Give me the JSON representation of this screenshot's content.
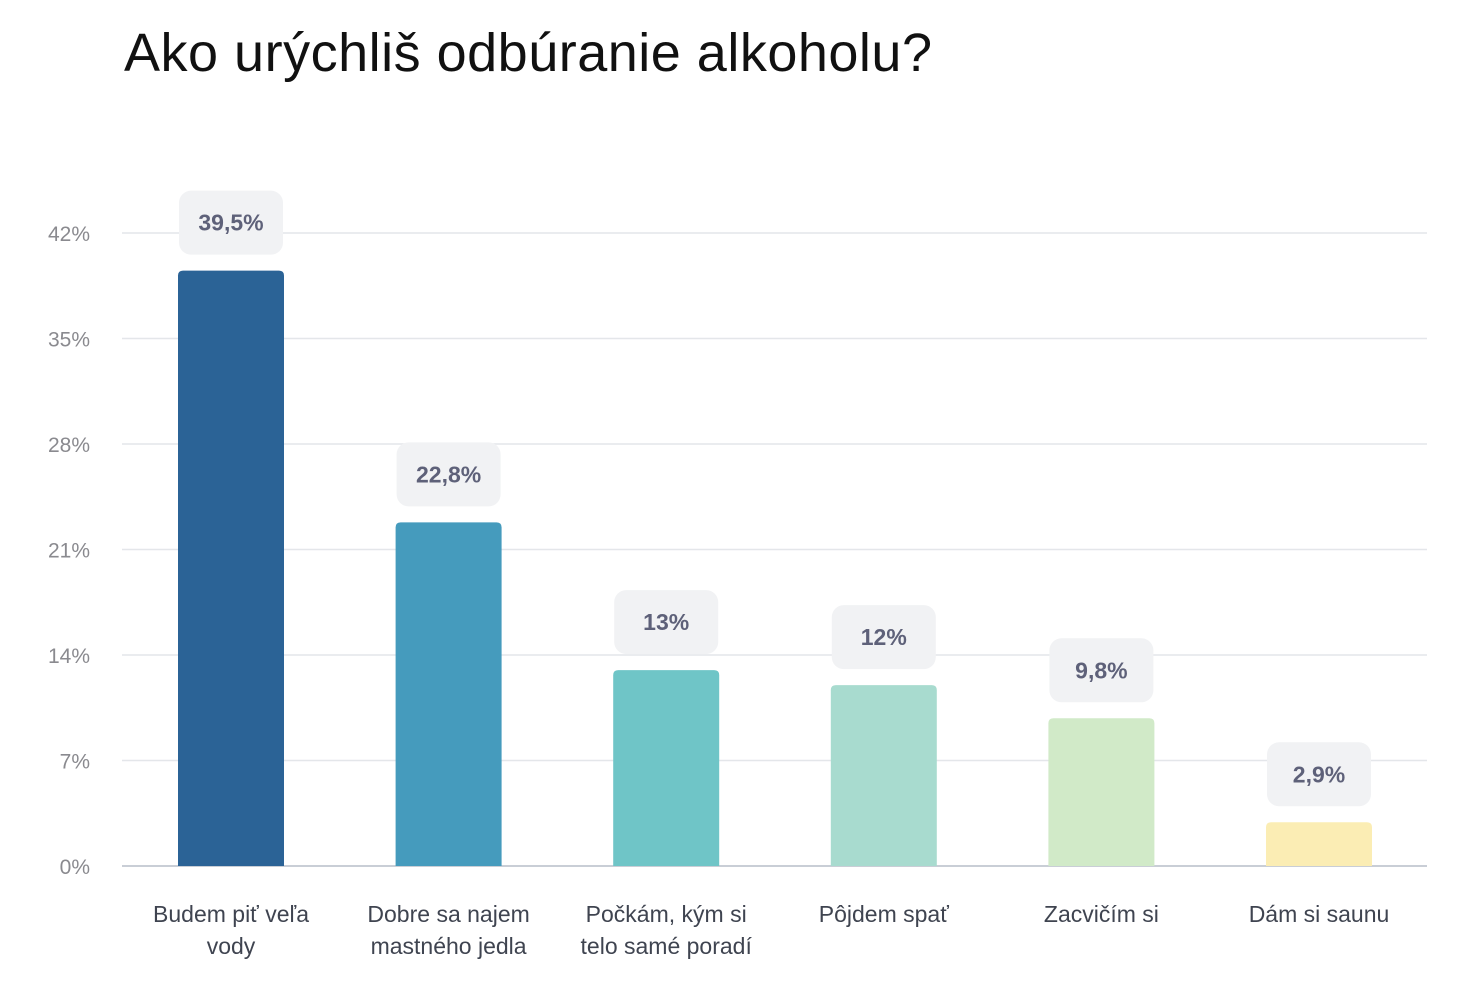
{
  "chart_data": {
    "type": "bar",
    "title": "Ako urýchliš odbúranie alkoholu?",
    "categories": [
      [
        "Budem piť veľa",
        "vody"
      ],
      [
        "Dobre sa najem",
        "mastného jedla"
      ],
      [
        "Počkám, kým si",
        "telo samé poradí"
      ],
      [
        "Pôjdem spať"
      ],
      [
        "Zacvičím si"
      ],
      [
        "Dám si saunu"
      ]
    ],
    "values": [
      39.5,
      22.8,
      13,
      12,
      9.8,
      2.9
    ],
    "value_labels": [
      "39,5%",
      "22,8%",
      "13%",
      "12%",
      "9,8%",
      "2,9%"
    ],
    "colors": [
      "#2b6396",
      "#459bbd",
      "#6fc5c7",
      "#a8dbcf",
      "#d1eac8",
      "#fbedb4"
    ],
    "yticks": [
      0,
      7,
      14,
      21,
      28,
      35,
      42
    ],
    "ytick_labels": [
      "0%",
      "7%",
      "14%",
      "21%",
      "28%",
      "35%",
      "42%"
    ],
    "ylim": [
      0,
      42
    ],
    "grid": true,
    "legend": "none",
    "xlabel": "",
    "ylabel": ""
  }
}
